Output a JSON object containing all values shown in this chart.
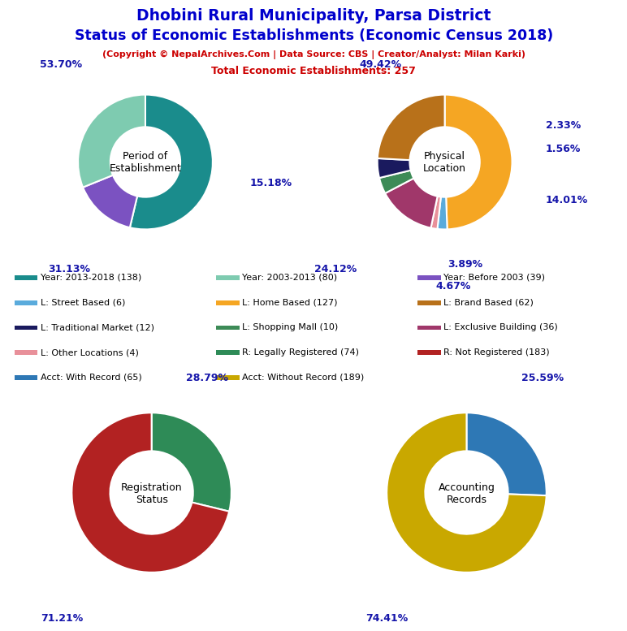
{
  "title_line1": "Dhobini Rural Municipality, Parsa District",
  "title_line2": "Status of Economic Establishments (Economic Census 2018)",
  "subtitle": "(Copyright © NepalArchives.Com | Data Source: CBS | Creator/Analyst: Milan Karki)",
  "total_line": "Total Economic Establishments: 257",
  "title_color": "#0000CC",
  "subtitle_color": "#CC0000",
  "pct_color": "#1515AA",
  "chart1": {
    "label": "Period of\nEstablishment",
    "slices": [
      138,
      39,
      80
    ],
    "colors": [
      "#1A8C8C",
      "#7B52C1",
      "#7ECBB0"
    ],
    "startangle": 90,
    "counterclock": false,
    "pcts": [
      "53.70%",
      "15.18%",
      "31.13%"
    ]
  },
  "chart2": {
    "label": "Physical\nLocation",
    "slices": [
      127,
      6,
      4,
      36,
      10,
      12,
      62
    ],
    "colors": [
      "#F5A623",
      "#5AABDC",
      "#E8909A",
      "#A0376A",
      "#3D8B57",
      "#1A1A5E",
      "#B8711A"
    ],
    "startangle": 90,
    "counterclock": false,
    "pcts": [
      "49.42%",
      "2.33%",
      "1.56%",
      "14.01%",
      "3.89%",
      "4.67%",
      "24.12%"
    ]
  },
  "chart3": {
    "label": "Registration\nStatus",
    "slices": [
      74,
      183
    ],
    "colors": [
      "#2E8B57",
      "#B22222"
    ],
    "startangle": 90,
    "counterclock": false,
    "pcts": [
      "28.79%",
      "71.21%"
    ]
  },
  "chart4": {
    "label": "Accounting\nRecords",
    "slices": [
      65,
      189
    ],
    "colors": [
      "#2E78B5",
      "#C9A800"
    ],
    "startangle": 90,
    "counterclock": false,
    "pcts": [
      "25.59%",
      "74.41%"
    ]
  },
  "legend_items": [
    {
      "label": "Year: 2013-2018 (138)",
      "color": "#1A8C8C"
    },
    {
      "label": "Year: 2003-2013 (80)",
      "color": "#7ECBB0"
    },
    {
      "label": "Year: Before 2003 (39)",
      "color": "#7B52C1"
    },
    {
      "label": "L: Street Based (6)",
      "color": "#5AABDC"
    },
    {
      "label": "L: Home Based (127)",
      "color": "#F5A623"
    },
    {
      "label": "L: Brand Based (62)",
      "color": "#B8711A"
    },
    {
      "label": "L: Traditional Market (12)",
      "color": "#1A1A5E"
    },
    {
      "label": "L: Shopping Mall (10)",
      "color": "#3D8B57"
    },
    {
      "label": "L: Exclusive Building (36)",
      "color": "#A0376A"
    },
    {
      "label": "L: Other Locations (4)",
      "color": "#E8909A"
    },
    {
      "label": "R: Legally Registered (74)",
      "color": "#2E8B57"
    },
    {
      "label": "R: Not Registered (183)",
      "color": "#B22222"
    },
    {
      "label": "Acct: With Record (65)",
      "color": "#2E78B5"
    },
    {
      "label": "Acct: Without Record (189)",
      "color": "#C9A800"
    }
  ]
}
